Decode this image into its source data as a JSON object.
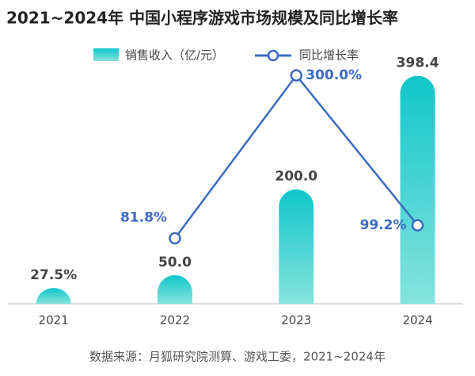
{
  "chart_data": {
    "type": "bar_line",
    "title": "2021~2024年 中国小程序游戏市场规模及同比增长率",
    "source": "数据来源：月狐研究院测算、游戏工委，2021~2024年",
    "categories": [
      "2021",
      "2022",
      "2023",
      "2024"
    ],
    "series": [
      {
        "name": "销售收入（亿/元）",
        "type": "bar",
        "color": "#14c6c9",
        "values": [
          27.5,
          50,
          200,
          398.4
        ],
        "value_labels": [
          "27.5%",
          "50.0",
          "200.0",
          "398.4"
        ]
      },
      {
        "name": "同比增长率",
        "type": "line",
        "axis": "y2",
        "color": "#3a6bc4",
        "values": [
          null,
          81.8,
          300,
          99.2
        ],
        "value_labels": [
          null,
          "81.8%",
          "300.0%",
          "99.2%"
        ]
      }
    ],
    "ylim": [
      0,
      420
    ],
    "y2lim": [
      -6,
      316
    ]
  }
}
